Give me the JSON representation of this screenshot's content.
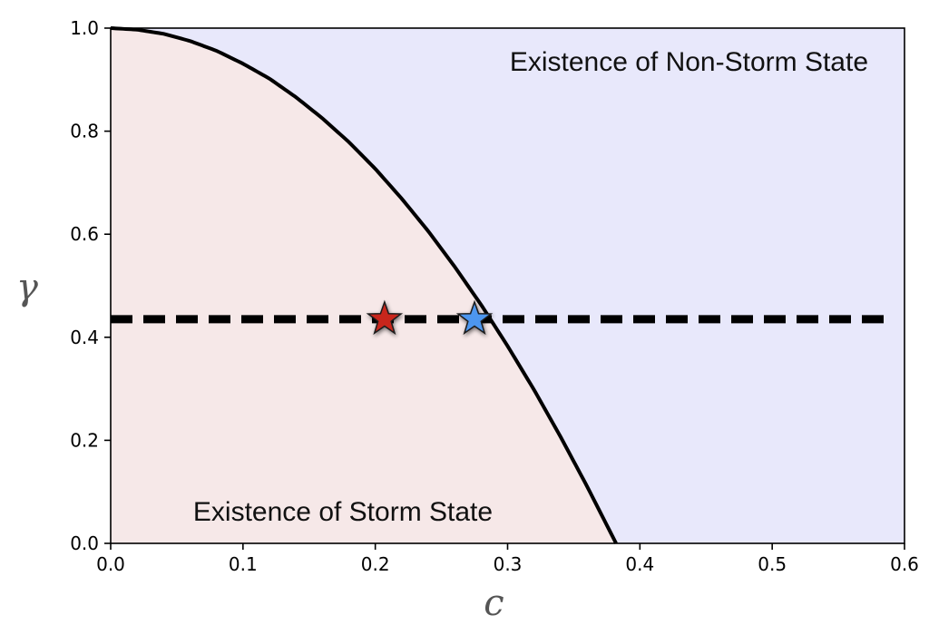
{
  "chart_data": {
    "type": "line",
    "title": "",
    "xlabel": "c",
    "ylabel": "γ",
    "xlim": [
      0.0,
      0.6
    ],
    "ylim": [
      0.0,
      1.0
    ],
    "xticks": [
      "0.0",
      "0.1",
      "0.2",
      "0.3",
      "0.4",
      "0.5",
      "0.6"
    ],
    "yticks": [
      "0.0",
      "0.2",
      "0.4",
      "0.6",
      "0.8",
      "1.0"
    ],
    "boundary_curve": {
      "name": "boundary",
      "x": [
        0.0,
        0.02,
        0.04,
        0.06,
        0.08,
        0.1,
        0.12,
        0.14,
        0.16,
        0.18,
        0.2,
        0.22,
        0.24,
        0.26,
        0.28,
        0.3,
        0.32,
        0.34,
        0.36,
        0.382
      ],
      "y": [
        1.0,
        0.997,
        0.989,
        0.975,
        0.956,
        0.931,
        0.902,
        0.866,
        0.825,
        0.779,
        0.727,
        0.669,
        0.606,
        0.537,
        0.463,
        0.383,
        0.298,
        0.207,
        0.111,
        0.0
      ]
    },
    "threshold_line": {
      "y": 0.435,
      "x_range": [
        0.0,
        0.588
      ],
      "style": "dashed"
    },
    "markers": [
      {
        "name": "storm-point",
        "x": 0.207,
        "y": 0.435,
        "color": "#c8281e",
        "shape": "star"
      },
      {
        "name": "non-storm-point",
        "x": 0.275,
        "y": 0.435,
        "color": "#4d96ee",
        "shape": "star"
      }
    ],
    "regions": [
      {
        "name": "storm",
        "label": "Existence of Storm State",
        "color": "#f6e8e8"
      },
      {
        "name": "non-storm",
        "label": "Existence of Non-Storm State",
        "color": "#e8e8fb"
      }
    ],
    "grid": false,
    "legend": "none"
  }
}
